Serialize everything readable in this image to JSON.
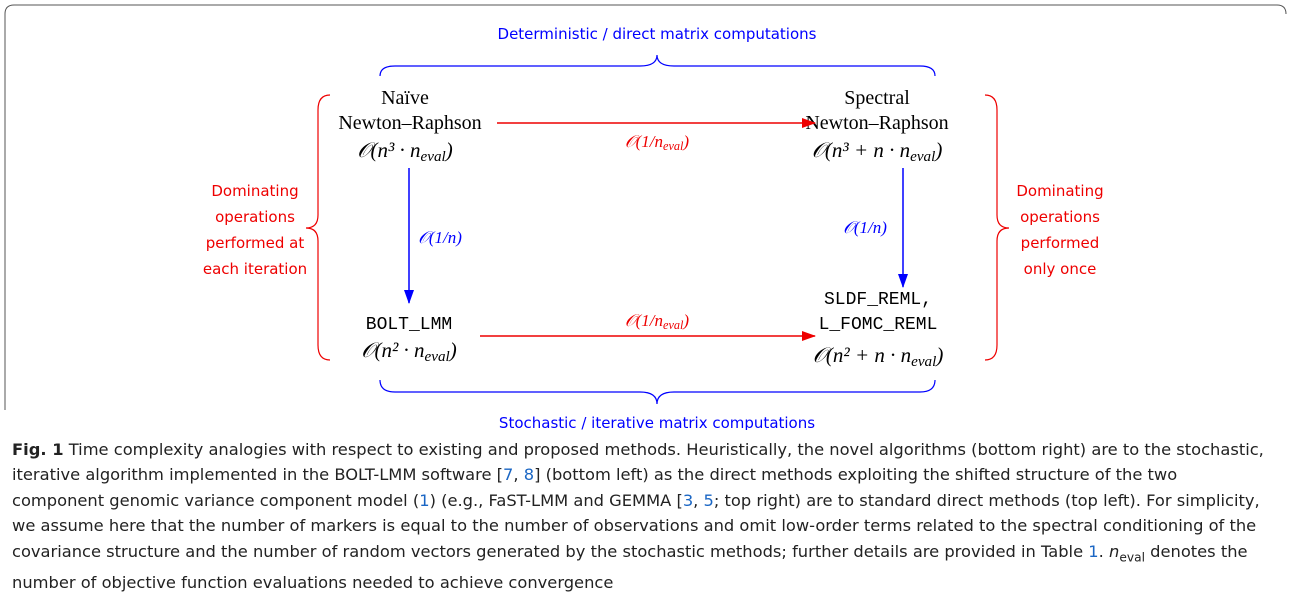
{
  "header": {
    "top_label": "Deterministic / direct matrix computations",
    "bottom_label": "Stochastic / iterative matrix computations"
  },
  "side_labels": {
    "left": [
      "Dominating",
      "operations",
      "performed at",
      "each iteration"
    ],
    "right": [
      "Dominating",
      "operations",
      "performed",
      "only once"
    ]
  },
  "nodes": [
    {
      "lines": [
        "Naïve",
        "Newton–Raphson"
      ],
      "complexity": {
        "main": "𝒪(n³ · n",
        "sub": "eval",
        "end": ")"
      }
    },
    {
      "lines": [
        "Spectral",
        "Newton–Raphson"
      ],
      "complexity": {
        "main": "𝒪(n³ + n · n",
        "sub": "eval",
        "end": ")"
      }
    },
    {
      "lines": [
        "BOLT_LMM"
      ],
      "complexity": {
        "main": "𝒪(n² · n",
        "sub": "eval",
        "end": ")"
      }
    },
    {
      "lines": [
        "SLDF_REML,",
        "L_FOMC_REML"
      ],
      "complexity": {
        "main": "𝒪(n² + n · n",
        "sub": "eval",
        "end": ")"
      }
    }
  ],
  "edges": [
    {
      "label": {
        "main": "𝒪(1/n",
        "sub": "eval",
        "end": ")"
      }
    },
    {
      "label": {
        "main": "𝒪(1/n)"
      }
    },
    {
      "label": {
        "main": "𝒪(1/n)"
      }
    },
    {
      "label": {
        "main": "𝒪(1/n",
        "sub": "eval",
        "end": ")"
      }
    }
  ],
  "caption": {
    "segments": [
      "Fig. 1",
      " Time complexity analogies with respect to existing and proposed methods. Heuristically, the novel algorithms (bottom right) are to the stochastic, iterative algorithm implemented in the BOLT-LMM software [",
      "7",
      ", ",
      "8",
      "] (bottom left) as the direct methods exploiting the shifted structure of the two component genomic variance component model (",
      "1",
      ") (e.g., FaST-LMM and GEMMA [",
      "3",
      ", ",
      "5",
      "; top right) are to standard direct methods (top left). For simplicity, we assume here that the number of markers is equal to the number of observations and omit low-order terms related to the spectral conditioning of the covariance structure and the number of random vectors generated by the stochastic methods; further details are provided in Table ",
      "1",
      ". ",
      "n",
      "eval",
      " denotes the number of objective function evaluations needed to achieve convergence"
    ]
  }
}
